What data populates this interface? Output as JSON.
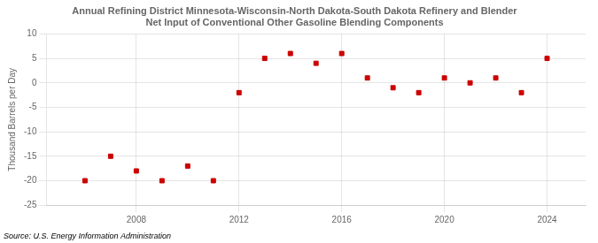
{
  "chart_data": {
    "type": "scatter",
    "title": "Annual Refining District Minnesota-Wisconsin-North Dakota-South Dakota Refinery and Blender\nNet Input of Conventional Other Gasoline Blending Components",
    "y_label": "Thousand Barrels per Day",
    "annotation": "Source: U.S. Energy Information Administration",
    "x": [
      2006,
      2007,
      2008,
      2009,
      2010,
      2011,
      2012,
      2013,
      2014,
      2015,
      2016,
      2017,
      2018,
      2019,
      2020,
      2021,
      2022,
      2023,
      2024
    ],
    "values": [
      -20,
      -15,
      -18,
      -20,
      -17,
      -20,
      -2,
      5,
      6,
      4,
      6,
      1,
      -1,
      -2,
      1,
      0,
      1,
      -2,
      5
    ],
    "color": "#cc0000",
    "marker": "square",
    "xlim": [
      2004.5,
      2025.5
    ],
    "xticks": [
      2008,
      2012,
      2016,
      2020,
      2024
    ],
    "ylim": [
      -25,
      10
    ],
    "yticks": [
      -25,
      -20,
      -15,
      -10,
      -5,
      0,
      5,
      10
    ],
    "grid": true
  }
}
